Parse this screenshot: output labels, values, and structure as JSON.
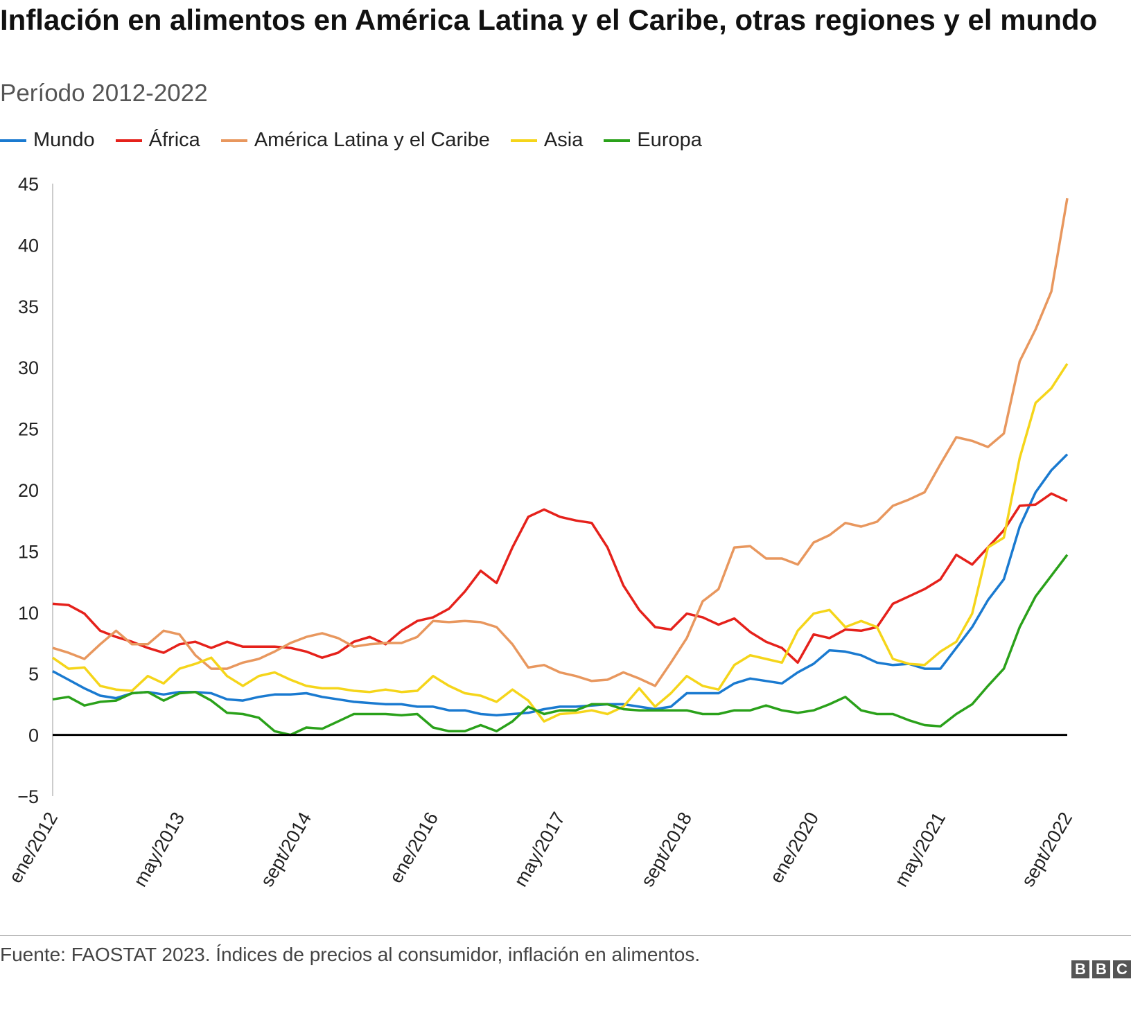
{
  "title": "Inflación en alimentos en América Latina y el Caribe, otras regiones y el mundo",
  "subtitle": "Período 2012-2022",
  "source": "Fuente: FAOSTAT 2023. Índices de precios al consumidor, inflación en alimentos.",
  "logo": "BBC",
  "chart_data": {
    "type": "line",
    "title": "Inflación en alimentos en América Latina y el Caribe, otras regiones y el mundo",
    "subtitle": "Período 2012-2022",
    "xlabel": "",
    "ylabel": "",
    "ylim": [
      -5,
      45
    ],
    "yticks": [
      -5,
      0,
      5,
      10,
      15,
      20,
      25,
      30,
      35,
      40,
      45
    ],
    "ytick_labels": [
      "−5",
      "0",
      "5",
      "10",
      "15",
      "20",
      "25",
      "30",
      "35",
      "40",
      "45"
    ],
    "xlim": [
      "2012-01",
      "2022-09"
    ],
    "xticks": [
      {
        "date": "2012-01",
        "label": "ene/2012"
      },
      {
        "date": "2013-05",
        "label": "may/2013"
      },
      {
        "date": "2014-09",
        "label": "sept/2014"
      },
      {
        "date": "2016-01",
        "label": "ene/2016"
      },
      {
        "date": "2017-05",
        "label": "may/2017"
      },
      {
        "date": "2018-09",
        "label": "sept/2018"
      },
      {
        "date": "2020-01",
        "label": "ene/2020"
      },
      {
        "date": "2021-05",
        "label": "may/2021"
      },
      {
        "date": "2022-09",
        "label": "sept/2022"
      }
    ],
    "grid": false,
    "zero_line": true,
    "legend_position": "top-left",
    "x": [
      "2012-01",
      "2012-03",
      "2012-05",
      "2012-07",
      "2012-09",
      "2012-11",
      "2013-01",
      "2013-03",
      "2013-05",
      "2013-07",
      "2013-09",
      "2013-11",
      "2014-01",
      "2014-03",
      "2014-05",
      "2014-07",
      "2014-09",
      "2014-11",
      "2015-01",
      "2015-03",
      "2015-05",
      "2015-07",
      "2015-09",
      "2015-11",
      "2016-01",
      "2016-03",
      "2016-05",
      "2016-07",
      "2016-09",
      "2016-11",
      "2017-01",
      "2017-03",
      "2017-05",
      "2017-07",
      "2017-09",
      "2017-11",
      "2018-01",
      "2018-03",
      "2018-05",
      "2018-07",
      "2018-09",
      "2018-11",
      "2019-01",
      "2019-03",
      "2019-05",
      "2019-07",
      "2019-09",
      "2019-11",
      "2020-01",
      "2020-03",
      "2020-05",
      "2020-07",
      "2020-09",
      "2020-11",
      "2021-01",
      "2021-03",
      "2021-05",
      "2021-07",
      "2021-09",
      "2021-11",
      "2022-01",
      "2022-03",
      "2022-05",
      "2022-07",
      "2022-09"
    ],
    "series": [
      {
        "name": "Mundo",
        "color": "#1a7ad0",
        "values": [
          5.2,
          4.5,
          3.8,
          3.2,
          3.0,
          3.4,
          3.5,
          3.3,
          3.5,
          3.5,
          3.4,
          2.9,
          2.8,
          3.1,
          3.3,
          3.3,
          3.4,
          3.1,
          2.9,
          2.7,
          2.6,
          2.5,
          2.5,
          2.3,
          2.3,
          2.0,
          2.0,
          1.7,
          1.6,
          1.7,
          1.8,
          2.1,
          2.3,
          2.3,
          2.4,
          2.5,
          2.5,
          2.3,
          2.1,
          2.3,
          3.4,
          3.4,
          3.4,
          4.2,
          4.6,
          4.4,
          4.2,
          5.1,
          5.8,
          6.9,
          6.8,
          6.5,
          5.9,
          5.7,
          5.8,
          5.4,
          5.4,
          7.1,
          8.8,
          11.0,
          12.7,
          17.0,
          19.8,
          21.6,
          22.9
        ]
      },
      {
        "name": "África",
        "color": "#e5211b",
        "values": [
          10.7,
          10.6,
          9.9,
          8.5,
          8.0,
          7.6,
          7.1,
          6.7,
          7.4,
          7.6,
          7.1,
          7.6,
          7.2,
          7.2,
          7.2,
          7.1,
          6.8,
          6.3,
          6.7,
          7.6,
          8.0,
          7.4,
          8.5,
          9.3,
          9.6,
          10.3,
          11.7,
          13.4,
          12.4,
          15.3,
          17.8,
          18.4,
          17.8,
          17.5,
          17.3,
          15.3,
          12.2,
          10.2,
          8.8,
          8.6,
          9.9,
          9.6,
          9.0,
          9.5,
          8.4,
          7.6,
          7.1,
          5.9,
          8.2,
          7.9,
          8.6,
          8.5,
          8.8,
          10.7,
          11.3,
          11.9,
          12.7,
          14.7,
          13.9,
          15.3,
          16.7,
          18.7,
          18.8,
          19.7,
          19.1
        ]
      },
      {
        "name": "América Latina y el Caribe",
        "color": "#e8975e",
        "values": [
          7.1,
          6.7,
          6.2,
          7.4,
          8.5,
          7.4,
          7.4,
          8.5,
          8.2,
          6.5,
          5.4,
          5.4,
          5.9,
          6.2,
          6.8,
          7.5,
          8.0,
          8.3,
          7.9,
          7.2,
          7.4,
          7.5,
          7.5,
          8.0,
          9.3,
          9.2,
          9.3,
          9.2,
          8.8,
          7.4,
          5.5,
          5.7,
          5.1,
          4.8,
          4.4,
          4.5,
          5.1,
          4.6,
          4.0,
          5.9,
          7.9,
          10.9,
          11.9,
          15.3,
          15.4,
          14.4,
          14.4,
          13.9,
          15.7,
          16.3,
          17.3,
          17.0,
          17.4,
          18.7,
          19.2,
          19.8,
          22.1,
          24.3,
          24.0,
          23.5,
          24.6,
          30.5,
          33.1,
          36.2,
          43.8
        ]
      },
      {
        "name": "Asia",
        "color": "#f5d51a",
        "values": [
          6.3,
          5.4,
          5.5,
          4.0,
          3.7,
          3.6,
          4.8,
          4.2,
          5.4,
          5.8,
          6.3,
          4.8,
          4.0,
          4.8,
          5.1,
          4.5,
          4.0,
          3.8,
          3.8,
          3.6,
          3.5,
          3.7,
          3.5,
          3.6,
          4.8,
          4.0,
          3.4,
          3.2,
          2.7,
          3.7,
          2.8,
          1.1,
          1.7,
          1.8,
          2.0,
          1.7,
          2.3,
          3.8,
          2.3,
          3.4,
          4.8,
          4.0,
          3.7,
          5.7,
          6.5,
          6.2,
          5.9,
          8.5,
          9.9,
          10.2,
          8.8,
          9.3,
          8.8,
          6.2,
          5.8,
          5.7,
          6.8,
          7.6,
          9.9,
          15.3,
          16.1,
          22.6,
          27.1,
          28.3,
          30.3
        ]
      },
      {
        "name": "Europa",
        "color": "#2aa11a",
        "values": [
          2.9,
          3.1,
          2.4,
          2.7,
          2.8,
          3.4,
          3.5,
          2.8,
          3.4,
          3.5,
          2.8,
          1.8,
          1.7,
          1.4,
          0.3,
          0.0,
          0.6,
          0.5,
          1.1,
          1.7,
          1.7,
          1.7,
          1.6,
          1.7,
          0.6,
          0.3,
          0.3,
          0.8,
          0.3,
          1.1,
          2.3,
          1.7,
          2.0,
          2.0,
          2.5,
          2.5,
          2.1,
          2.0,
          2.0,
          2.0,
          2.0,
          1.7,
          1.7,
          2.0,
          2.0,
          2.4,
          2.0,
          1.8,
          2.0,
          2.5,
          3.1,
          2.0,
          1.7,
          1.7,
          1.2,
          0.8,
          0.7,
          1.7,
          2.5,
          4.0,
          5.4,
          8.8,
          11.3,
          13.0,
          14.7
        ]
      }
    ]
  }
}
